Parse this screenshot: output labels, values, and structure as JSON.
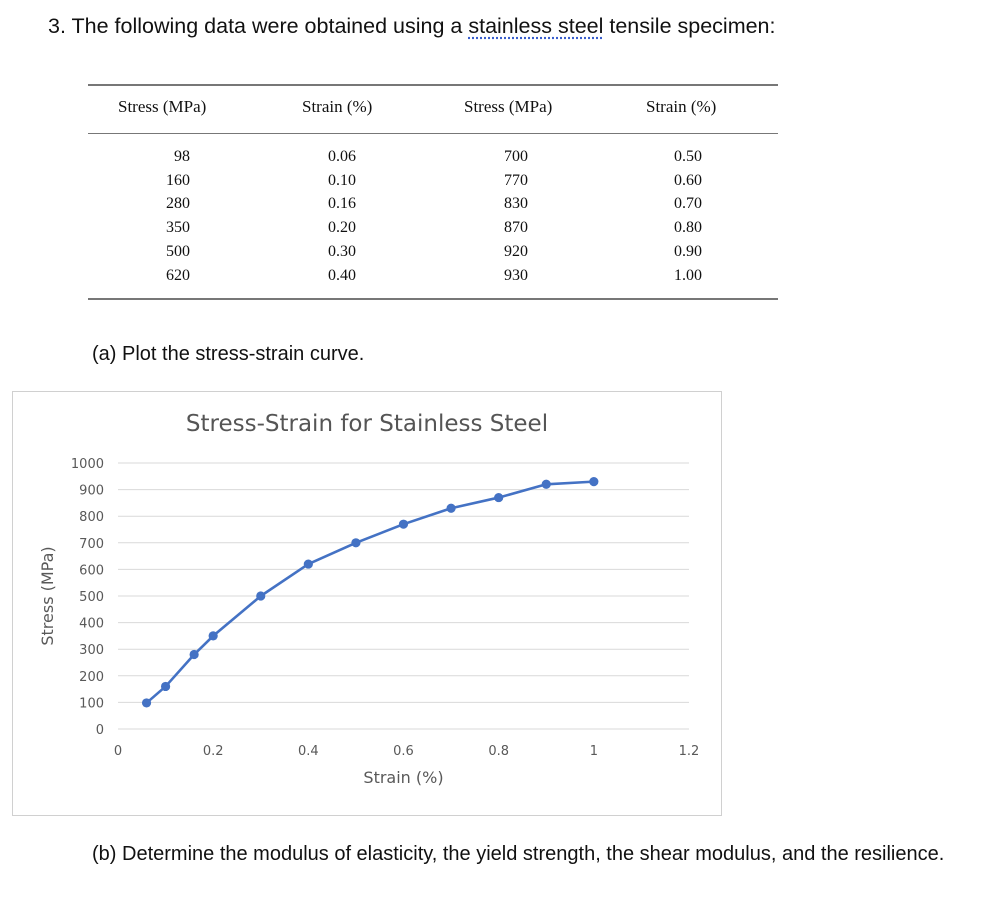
{
  "question": {
    "prefix": "3.  The following data were obtained using a",
    "highlight": "stainless steel",
    "suffix": "tensile specimen:"
  },
  "table": {
    "headers": [
      "Stress (MPa)",
      "Strain (%)",
      "Stress (MPa)",
      "Strain (%)"
    ],
    "columns": [
      [
        "98",
        "160",
        "280",
        "350",
        "500",
        "620"
      ],
      [
        "0.06",
        "0.10",
        "0.16",
        "0.20",
        "0.30",
        "0.40"
      ],
      [
        "700",
        "770",
        "830",
        "870",
        "920",
        "930"
      ],
      [
        "0.50",
        "0.60",
        "0.70",
        "0.80",
        "0.90",
        "1.00"
      ]
    ]
  },
  "part_a": "(a) Plot the stress-strain curve.",
  "part_b": "(b) Determine the modulus of elasticity, the yield strength, the shear modulus, and the resilience.",
  "chart_data": {
    "type": "line",
    "title": "Stress-Strain for Stainless Steel",
    "xlabel": "Strain (%)",
    "ylabel": "Stress (MPa)",
    "xlim": [
      0,
      1.2
    ],
    "ylim": [
      0,
      1000
    ],
    "xticks": [
      "0",
      "0.2",
      "0.4",
      "0.6",
      "0.8",
      "1",
      "1.2"
    ],
    "yticks": [
      "0",
      "100",
      "200",
      "300",
      "400",
      "500",
      "600",
      "700",
      "800",
      "900",
      "1000"
    ],
    "grid": "horizontal",
    "color": "#4472C4",
    "x": [
      0.06,
      0.1,
      0.16,
      0.2,
      0.3,
      0.4,
      0.5,
      0.6,
      0.7,
      0.8,
      0.9,
      1.0
    ],
    "y": [
      98,
      160,
      280,
      350,
      500,
      620,
      700,
      770,
      830,
      870,
      920,
      930
    ]
  }
}
